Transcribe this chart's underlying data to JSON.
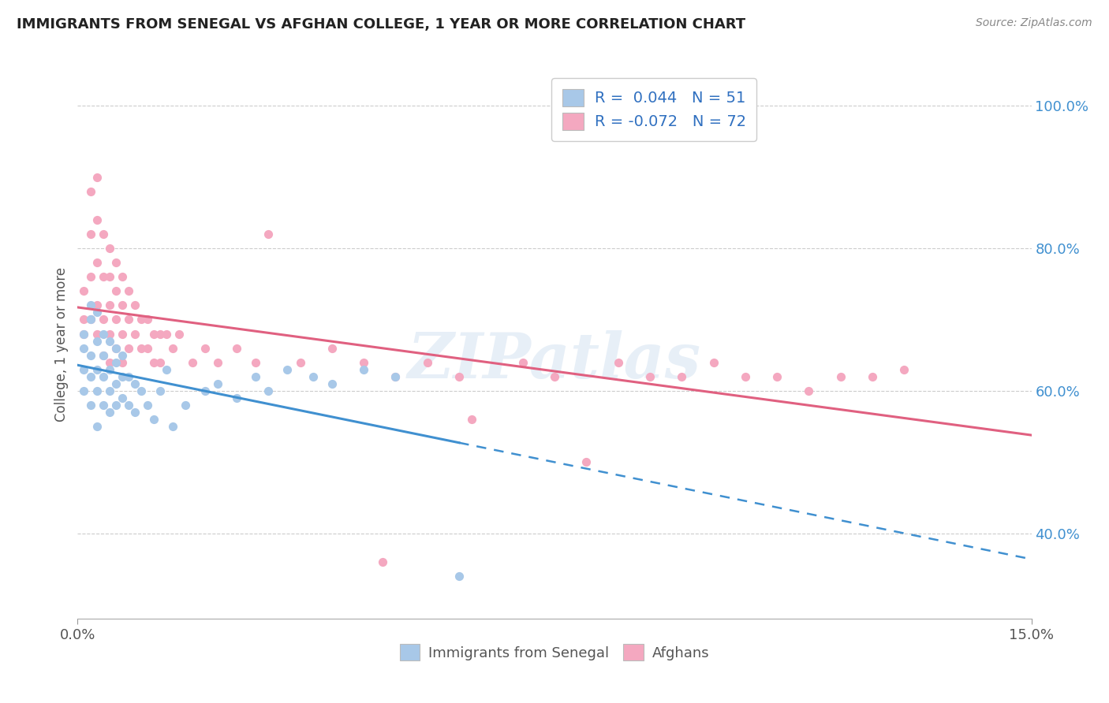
{
  "title": "IMMIGRANTS FROM SENEGAL VS AFGHAN COLLEGE, 1 YEAR OR MORE CORRELATION CHART",
  "source_text": "Source: ZipAtlas.com",
  "ylabel": "College, 1 year or more",
  "xlim": [
    0.0,
    0.15
  ],
  "ylim": [
    0.28,
    1.05
  ],
  "xtick_vals": [
    0.0,
    0.15
  ],
  "xtick_labels": [
    "0.0%",
    "15.0%"
  ],
  "ytick_vals": [
    0.4,
    0.6,
    0.8,
    1.0
  ],
  "ytick_labels": [
    "40.0%",
    "60.0%",
    "80.0%",
    "100.0%"
  ],
  "senegal_color": "#a8c8e8",
  "afghan_color": "#f4a8c0",
  "senegal_line_color": "#4090d0",
  "afghan_line_color": "#e06080",
  "r_text_color": "#3070c0",
  "yticklabel_color": "#4090d0",
  "senegal_R": 0.044,
  "senegal_N": 51,
  "afghan_R": -0.072,
  "afghan_N": 72,
  "watermark": "ZIPatlas",
  "legend_label_senegal": "Immigrants from Senegal",
  "legend_label_afghan": "Afghans",
  "senegal_x": [
    0.001,
    0.001,
    0.001,
    0.001,
    0.002,
    0.002,
    0.002,
    0.002,
    0.002,
    0.003,
    0.003,
    0.003,
    0.003,
    0.003,
    0.004,
    0.004,
    0.004,
    0.004,
    0.005,
    0.005,
    0.005,
    0.005,
    0.006,
    0.006,
    0.006,
    0.006,
    0.007,
    0.007,
    0.007,
    0.008,
    0.008,
    0.009,
    0.009,
    0.01,
    0.011,
    0.012,
    0.013,
    0.014,
    0.015,
    0.017,
    0.02,
    0.022,
    0.025,
    0.028,
    0.03,
    0.033,
    0.037,
    0.04,
    0.045,
    0.05,
    0.06
  ],
  "senegal_y": [
    0.6,
    0.63,
    0.66,
    0.68,
    0.58,
    0.62,
    0.65,
    0.7,
    0.72,
    0.55,
    0.6,
    0.63,
    0.67,
    0.71,
    0.58,
    0.62,
    0.65,
    0.68,
    0.57,
    0.6,
    0.63,
    0.67,
    0.58,
    0.61,
    0.64,
    0.66,
    0.59,
    0.62,
    0.65,
    0.58,
    0.62,
    0.57,
    0.61,
    0.6,
    0.58,
    0.56,
    0.6,
    0.63,
    0.55,
    0.58,
    0.6,
    0.61,
    0.59,
    0.62,
    0.6,
    0.63,
    0.62,
    0.61,
    0.63,
    0.62,
    0.34
  ],
  "afghan_x": [
    0.001,
    0.001,
    0.001,
    0.002,
    0.002,
    0.002,
    0.002,
    0.003,
    0.003,
    0.003,
    0.003,
    0.003,
    0.004,
    0.004,
    0.004,
    0.004,
    0.005,
    0.005,
    0.005,
    0.005,
    0.005,
    0.006,
    0.006,
    0.006,
    0.006,
    0.007,
    0.007,
    0.007,
    0.007,
    0.008,
    0.008,
    0.008,
    0.009,
    0.009,
    0.01,
    0.01,
    0.011,
    0.011,
    0.012,
    0.012,
    0.013,
    0.013,
    0.014,
    0.015,
    0.016,
    0.018,
    0.02,
    0.022,
    0.025,
    0.028,
    0.03,
    0.035,
    0.04,
    0.045,
    0.05,
    0.055,
    0.06,
    0.07,
    0.075,
    0.08,
    0.085,
    0.09,
    0.095,
    0.1,
    0.105,
    0.11,
    0.115,
    0.12,
    0.125,
    0.13,
    0.048,
    0.062
  ],
  "afghan_y": [
    0.74,
    0.7,
    0.68,
    0.88,
    0.82,
    0.76,
    0.7,
    0.9,
    0.84,
    0.78,
    0.72,
    0.68,
    0.82,
    0.76,
    0.7,
    0.65,
    0.8,
    0.76,
    0.72,
    0.68,
    0.64,
    0.78,
    0.74,
    0.7,
    0.66,
    0.76,
    0.72,
    0.68,
    0.64,
    0.74,
    0.7,
    0.66,
    0.72,
    0.68,
    0.7,
    0.66,
    0.7,
    0.66,
    0.68,
    0.64,
    0.68,
    0.64,
    0.68,
    0.66,
    0.68,
    0.64,
    0.66,
    0.64,
    0.66,
    0.64,
    0.82,
    0.64,
    0.66,
    0.64,
    0.62,
    0.64,
    0.62,
    0.64,
    0.62,
    0.5,
    0.64,
    0.62,
    0.62,
    0.64,
    0.62,
    0.62,
    0.6,
    0.62,
    0.62,
    0.63,
    0.36,
    0.56
  ]
}
